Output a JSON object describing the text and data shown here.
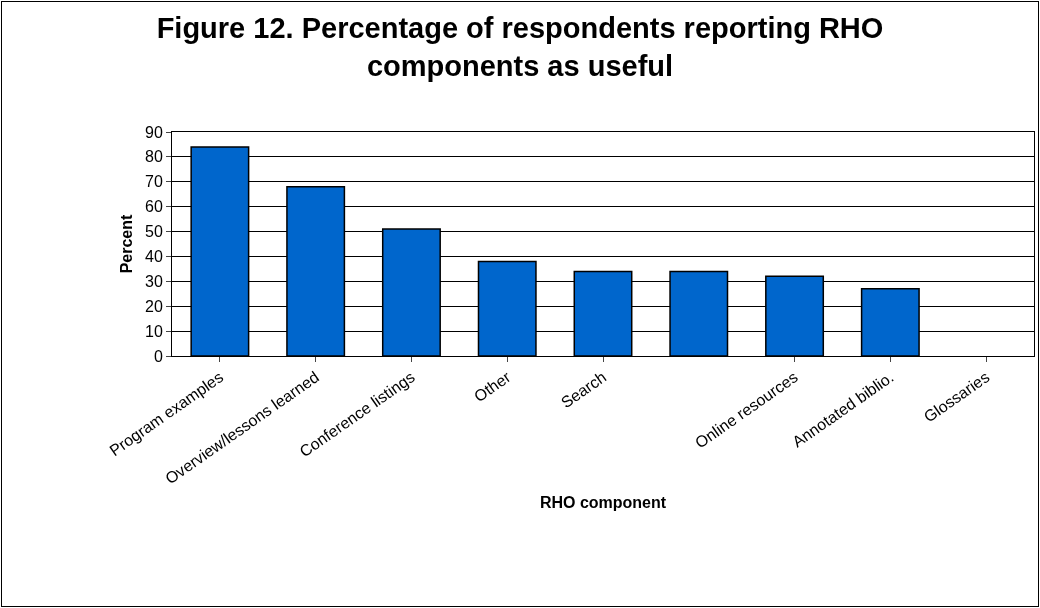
{
  "chart_data": {
    "type": "bar",
    "title": "Figure 12. Percentage of respondents reporting RHO components as useful",
    "xlabel": "RHO component",
    "ylabel": "Percent",
    "categories": [
      "Program examples",
      "Overview/lessons learned",
      "Conference listings",
      "Other",
      "Search",
      null,
      "Online resources",
      "Annotated biblio.",
      "Glossaries"
    ],
    "values": [
      84,
      68,
      51,
      38,
      34,
      34,
      32,
      27,
      0
    ],
    "color": "#0066cc",
    "ylim": [
      0,
      90
    ],
    "yticks": [
      0,
      10,
      20,
      30,
      40,
      50,
      60,
      70,
      80,
      90
    ],
    "grid": "y"
  }
}
